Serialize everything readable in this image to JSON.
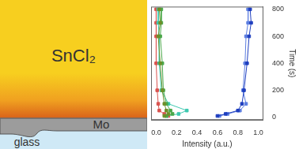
{
  "diagram": {
    "layers": [
      {
        "label": "SnCl₂",
        "color": "#f7cf1f"
      },
      {
        "label": "Mo",
        "color": "#9c9c9c"
      },
      {
        "label": "glass",
        "color": "#cfe9f6"
      }
    ]
  },
  "chart_data": {
    "type": "scatter",
    "xlabel": "Intensity (a.u.)",
    "ylabel": "Time (s)",
    "xlim": [
      -0.05,
      1.05
    ],
    "ylim": [
      -20,
      820
    ],
    "xticks": [
      {
        "value": 0,
        "label": "0.0"
      },
      {
        "value": 0.2,
        "label": "0.2"
      },
      {
        "value": 0.4,
        "label": "0.4"
      },
      {
        "value": 0.6,
        "label": "0.6"
      },
      {
        "value": 0.8,
        "label": "0.8"
      },
      {
        "value": 1,
        "label": "1.0"
      }
    ],
    "yticks": [
      0,
      200,
      400,
      600,
      800
    ],
    "grid": false,
    "marker": "square",
    "line_style": "solid",
    "series": [
      {
        "color": "#1f3fbf",
        "x": [
          0.92,
          0.93,
          0.91,
          0.89,
          0.86,
          0.84,
          0.8,
          0.68,
          0.6
        ],
        "y": [
          800,
          700,
          600,
          400,
          200,
          100,
          50,
          25,
          10
        ]
      },
      {
        "color": "#5b7de0",
        "x": [
          0.9,
          0.9,
          0.88,
          0.87,
          0.85,
          0.88,
          0.82,
          0.7,
          0.62
        ],
        "y": [
          800,
          700,
          600,
          400,
          200,
          100,
          50,
          25,
          10
        ]
      },
      {
        "color": "#6e8f2a",
        "x": [
          0.03,
          0.04,
          0.02,
          0.04,
          0.06,
          0.08,
          0.1,
          0.12,
          0.08
        ],
        "y": [
          800,
          700,
          600,
          400,
          200,
          100,
          50,
          25,
          10
        ]
      },
      {
        "color": "#4aa84a",
        "x": [
          0.05,
          0.05,
          0.04,
          0.06,
          0.07,
          0.1,
          0.14,
          0.16,
          0.1
        ],
        "y": [
          800,
          700,
          600,
          400,
          200,
          100,
          50,
          25,
          10
        ]
      },
      {
        "color": "#3cc8b0",
        "x": [
          0.02,
          0.02,
          0.03,
          0.03,
          0.05,
          0.12,
          0.3,
          0.22,
          0.1
        ],
        "y": [
          800,
          700,
          600,
          400,
          200,
          100,
          50,
          25,
          10
        ]
      },
      {
        "color": "#d9534f",
        "x": [
          0,
          0,
          0,
          0,
          0.01,
          0.02,
          0.03,
          0.08,
          0.12
        ],
        "y": [
          800,
          700,
          600,
          400,
          200,
          100,
          50,
          25,
          10
        ]
      }
    ]
  }
}
